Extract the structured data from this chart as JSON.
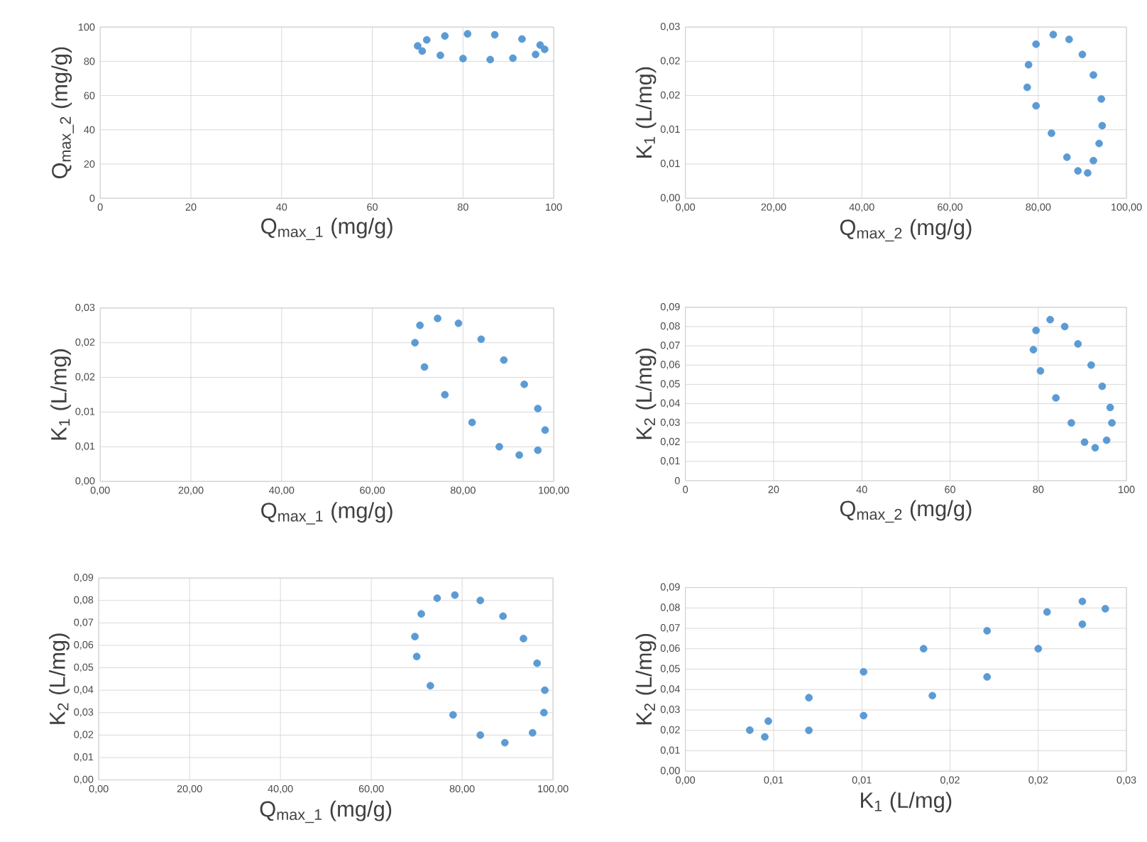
{
  "chart_data": [
    {
      "type": "scatter",
      "xlabel": "Q$_{max_1}$ (mg/g)",
      "ylabel": "Q$_{max_2}$ (mg/g)",
      "grid": true,
      "xlim": [
        0,
        100
      ],
      "ylim": [
        0,
        100
      ],
      "xticks": [
        0,
        20,
        40,
        60,
        80,
        100
      ],
      "yticks": [
        0,
        20,
        40,
        60,
        80,
        100
      ],
      "series": [
        {
          "color": "#5b9bd5",
          "x": [
            70,
            72,
            76,
            81,
            87,
            93,
            97,
            98,
            96,
            91,
            86,
            80,
            75,
            71
          ],
          "values": [
            89,
            92.5,
            94.8,
            96,
            95.5,
            93,
            89.5,
            87,
            84,
            81.8,
            81,
            81.6,
            83.5,
            86
          ]
        }
      ]
    },
    {
      "type": "scatter",
      "xlabel": "Q$_{max_2}$ (mg/g)",
      "ylabel": "K$_{1}$ (L/mg)",
      "grid": true,
      "xlim": [
        0,
        100
      ],
      "ylim": [
        0,
        0.025
      ],
      "xticks": [
        {
          "value": 0,
          "label": "0,00"
        },
        {
          "value": 20,
          "label": "20,00"
        },
        {
          "value": 40,
          "label": "40,00"
        },
        {
          "value": 60,
          "label": "60,00"
        },
        {
          "value": 80,
          "label": "80,00"
        },
        {
          "value": 100,
          "label": "100,00"
        }
      ],
      "yticks": [
        {
          "value": 0,
          "label": "0,00"
        },
        {
          "value": 0.005,
          "label": "0,01"
        },
        {
          "value": 0.01,
          "label": "0,01"
        },
        {
          "value": 0.015,
          "label": "0,02"
        },
        {
          "value": 0.02,
          "label": "0,02"
        },
        {
          "value": 0.025,
          "label": "0,03"
        }
      ],
      "series": [
        {
          "color": "#5b9bd5",
          "x": [
            83.4,
            87,
            90,
            92.5,
            94.3,
            94.5,
            93.8,
            92.5,
            91.2,
            89,
            86.5,
            83,
            79.5,
            77.5,
            77.8,
            79.5
          ],
          "values": [
            0.0239,
            0.0232,
            0.021,
            0.018,
            0.0145,
            0.0106,
            0.008,
            0.0055,
            0.0037,
            0.004,
            0.006,
            0.0095,
            0.0135,
            0.0162,
            0.0195,
            0.0225
          ]
        }
      ]
    },
    {
      "type": "scatter",
      "xlabel": "Q$_{max_1}$ (mg/g)",
      "ylabel": "K$_{1}$ (L/mg)",
      "grid": true,
      "xlim": [
        0,
        100
      ],
      "ylim": [
        0,
        0.025
      ],
      "xticks": [
        {
          "value": 0,
          "label": "0,00"
        },
        {
          "value": 20,
          "label": "20,00"
        },
        {
          "value": 40,
          "label": "40,00"
        },
        {
          "value": 60,
          "label": "60,00"
        },
        {
          "value": 80,
          "label": "80,00"
        },
        {
          "value": 100,
          "label": "100,00"
        }
      ],
      "yticks": [
        {
          "value": 0,
          "label": "0,00"
        },
        {
          "value": 0.005,
          "label": "0,01"
        },
        {
          "value": 0.01,
          "label": "0,01"
        },
        {
          "value": 0.015,
          "label": "0,02"
        },
        {
          "value": 0.02,
          "label": "0,02"
        },
        {
          "value": 0.025,
          "label": "0,03"
        }
      ],
      "series": [
        {
          "color": "#5b9bd5",
          "x": [
            74.4,
            79,
            84,
            89,
            93.5,
            96.5,
            98.1,
            96.5,
            92.4,
            88,
            82,
            76,
            71.5,
            69.4,
            70.5
          ],
          "values": [
            0.0235,
            0.0228,
            0.0205,
            0.0175,
            0.014,
            0.0105,
            0.0074,
            0.0045,
            0.0038,
            0.005,
            0.0085,
            0.0125,
            0.0165,
            0.02,
            0.0225
          ]
        }
      ]
    },
    {
      "type": "scatter",
      "xlabel": "Q$_{max_2}$ (mg/g)",
      "ylabel": "K$_{2}$ (L/mg)",
      "grid": true,
      "xlim": [
        0,
        100
      ],
      "ylim": [
        0,
        0.09
      ],
      "xticks": [
        0,
        20,
        40,
        60,
        80,
        100
      ],
      "yticks": [
        {
          "value": 0,
          "label": "0"
        },
        {
          "value": 0.01,
          "label": "0,01"
        },
        {
          "value": 0.02,
          "label": "0,02"
        },
        {
          "value": 0.03,
          "label": "0,03"
        },
        {
          "value": 0.04,
          "label": "0,04"
        },
        {
          "value": 0.05,
          "label": "0,05"
        },
        {
          "value": 0.06,
          "label": "0,06"
        },
        {
          "value": 0.07,
          "label": "0,07"
        },
        {
          "value": 0.08,
          "label": "0,08"
        },
        {
          "value": 0.09,
          "label": "0,09"
        }
      ],
      "series": [
        {
          "color": "#5b9bd5",
          "x": [
            82.7,
            86,
            89,
            92,
            94.5,
            96.3,
            96.7,
            95.5,
            92.9,
            90.5,
            87.5,
            84,
            80.5,
            78.9,
            79.5
          ],
          "values": [
            0.0836,
            0.08,
            0.071,
            0.06,
            0.049,
            0.038,
            0.03,
            0.021,
            0.0171,
            0.02,
            0.03,
            0.043,
            0.057,
            0.068,
            0.078
          ]
        }
      ]
    },
    {
      "type": "scatter",
      "xlabel": "Q$_{max_1}$ (mg/g)",
      "ylabel": "K$_{2}$ (L/mg)",
      "grid": true,
      "xlim": [
        0,
        100
      ],
      "ylim": [
        0,
        0.09
      ],
      "xticks": [
        {
          "value": 0,
          "label": "0,00"
        },
        {
          "value": 20,
          "label": "20,00"
        },
        {
          "value": 40,
          "label": "40,00"
        },
        {
          "value": 60,
          "label": "60,00"
        },
        {
          "value": 80,
          "label": "80,00"
        },
        {
          "value": 100,
          "label": "100,00"
        }
      ],
      "yticks": [
        {
          "value": 0,
          "label": "0,00"
        },
        {
          "value": 0.01,
          "label": "0,01"
        },
        {
          "value": 0.02,
          "label": "0,02"
        },
        {
          "value": 0.03,
          "label": "0,03"
        },
        {
          "value": 0.04,
          "label": "0,04"
        },
        {
          "value": 0.05,
          "label": "0,05"
        },
        {
          "value": 0.06,
          "label": "0,06"
        },
        {
          "value": 0.07,
          "label": "0,07"
        },
        {
          "value": 0.08,
          "label": "0,08"
        },
        {
          "value": 0.09,
          "label": "0,09"
        }
      ],
      "series": [
        {
          "color": "#5b9bd5",
          "x": [
            78.4,
            84,
            89,
            93.5,
            96.5,
            98.2,
            98,
            95.5,
            89.4,
            84,
            78,
            73,
            70,
            69.6,
            71,
            74.5
          ],
          "values": [
            0.0824,
            0.08,
            0.073,
            0.063,
            0.052,
            0.04,
            0.03,
            0.021,
            0.0166,
            0.02,
            0.029,
            0.042,
            0.055,
            0.0639,
            0.074,
            0.081
          ]
        }
      ]
    },
    {
      "type": "scatter",
      "xlabel": "K$_{1}$ (L/mg)",
      "ylabel": "K$_{2}$ (L/mg)",
      "grid": true,
      "xlim": [
        0,
        0.025
      ],
      "ylim": [
        0,
        0.09
      ],
      "xticks": [
        {
          "value": 0,
          "label": "0,00"
        },
        {
          "value": 0.005,
          "label": "0,01"
        },
        {
          "value": 0.01,
          "label": "0,01"
        },
        {
          "value": 0.015,
          "label": "0,02"
        },
        {
          "value": 0.02,
          "label": "0,02"
        },
        {
          "value": 0.025,
          "label": "0,03"
        }
      ],
      "yticks": [
        {
          "value": 0,
          "label": "0,00"
        },
        {
          "value": 0.01,
          "label": "0,01"
        },
        {
          "value": 0.02,
          "label": "0,02"
        },
        {
          "value": 0.03,
          "label": "0,03"
        },
        {
          "value": 0.04,
          "label": "0,04"
        },
        {
          "value": 0.05,
          "label": "0,05"
        },
        {
          "value": 0.06,
          "label": "0,06"
        },
        {
          "value": 0.07,
          "label": "0,07"
        },
        {
          "value": 0.08,
          "label": "0,08"
        },
        {
          "value": 0.09,
          "label": "0,09"
        }
      ],
      "series": [
        {
          "color": "#5b9bd5",
          "x": [
            0.00365,
            0.0047,
            0.007,
            0.0101,
            0.0135,
            0.0171,
            0.0205,
            0.0225,
            0.0238,
            0.0225,
            0.02,
            0.0171,
            0.014,
            0.0101,
            0.007,
            0.0045
          ],
          "values": [
            0.0201,
            0.0245,
            0.036,
            0.0487,
            0.06,
            0.0688,
            0.078,
            0.0832,
            0.0796,
            0.072,
            0.06,
            0.0462,
            0.037,
            0.0272,
            0.02,
            0.0168
          ]
        }
      ]
    }
  ]
}
